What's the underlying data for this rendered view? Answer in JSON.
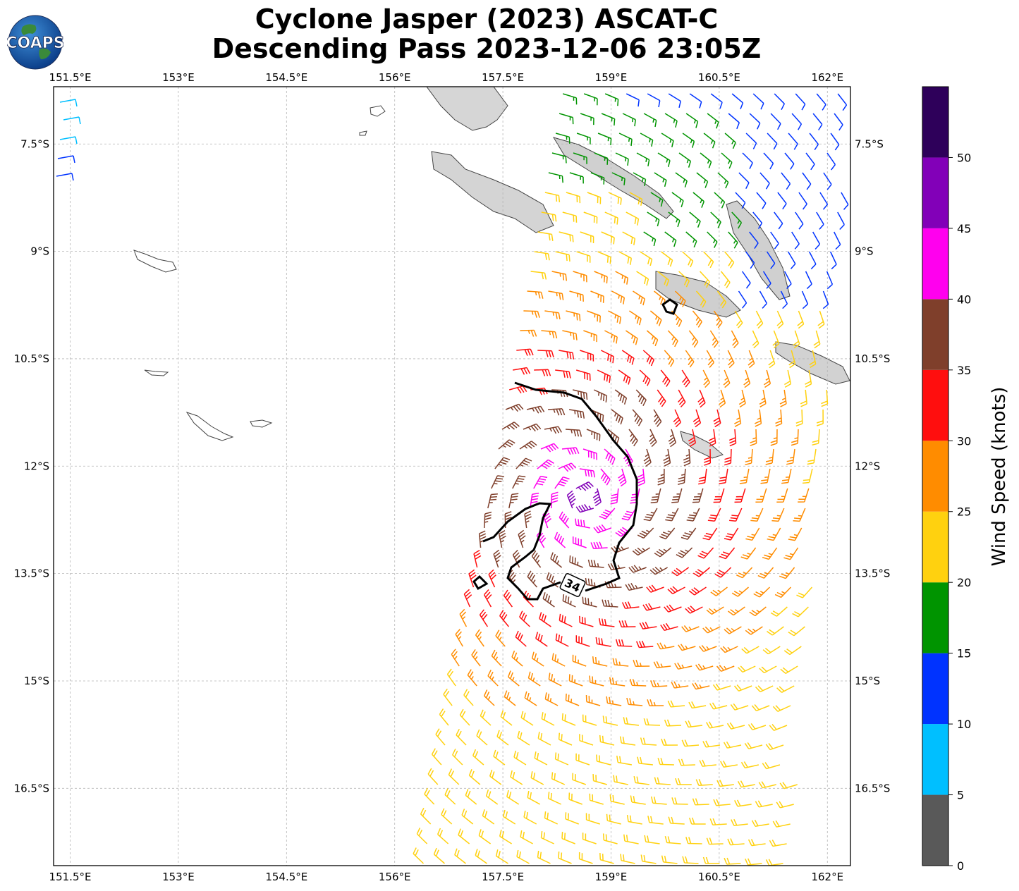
{
  "header": {
    "title_line1": "Cyclone Jasper (2023) ASCAT-C",
    "title_line2": "Descending Pass 2023-12-06 23:05Z",
    "logo_text": "COAPS"
  },
  "map": {
    "lon_ticks": [
      {
        "value": 151.5,
        "label": "151.5°E"
      },
      {
        "value": 153.0,
        "label": "153°E"
      },
      {
        "value": 154.5,
        "label": "154.5°E"
      },
      {
        "value": 156.0,
        "label": "156°E"
      },
      {
        "value": 157.5,
        "label": "157.5°E"
      },
      {
        "value": 159.0,
        "label": "159°E"
      },
      {
        "value": 160.5,
        "label": "160.5°E"
      },
      {
        "value": 162.0,
        "label": "162°E"
      }
    ],
    "lat_ticks": [
      {
        "value": -7.5,
        "label": "7.5°S"
      },
      {
        "value": -9.0,
        "label": "9°S"
      },
      {
        "value": -10.5,
        "label": "10.5°S"
      },
      {
        "value": -12.0,
        "label": "12°S"
      },
      {
        "value": -13.5,
        "label": "13.5°S"
      },
      {
        "value": -15.0,
        "label": "15°S"
      },
      {
        "value": -16.5,
        "label": "16.5°S"
      }
    ],
    "extent": {
      "lon_min": 151.27,
      "lon_max": 162.32,
      "lat_min": -17.58,
      "lat_max": -6.7
    },
    "gridlines": true,
    "contour_label": "34",
    "contour_value_knots": 34,
    "colors": {
      "coast": "#444444",
      "land": "#c8c8c8",
      "contour": "#000000",
      "grid": "#b5b5b5"
    }
  },
  "colorbar": {
    "title": "Wind Speed (knots)",
    "tick_labels": [
      "0",
      "5",
      "10",
      "15",
      "20",
      "25",
      "30",
      "35",
      "40",
      "45",
      "50"
    ],
    "bins": [
      {
        "from": 0,
        "to": 5,
        "color": "#595959"
      },
      {
        "from": 5,
        "to": 10,
        "color": "#00bfff"
      },
      {
        "from": 10,
        "to": 15,
        "color": "#0033ff"
      },
      {
        "from": 15,
        "to": 20,
        "color": "#009400"
      },
      {
        "from": 20,
        "to": 25,
        "color": "#ffd10f"
      },
      {
        "from": 25,
        "to": 30,
        "color": "#ff8c00"
      },
      {
        "from": 30,
        "to": 35,
        "color": "#ff0e0e"
      },
      {
        "from": 35,
        "to": 40,
        "color": "#7f3f2b"
      },
      {
        "from": 40,
        "to": 45,
        "color": "#ff00ee"
      },
      {
        "from": 45,
        "to": 50,
        "color": "#8200b8"
      },
      {
        "from": 50,
        "to": 55,
        "color": "#2e005a"
      }
    ],
    "max": 55
  }
}
